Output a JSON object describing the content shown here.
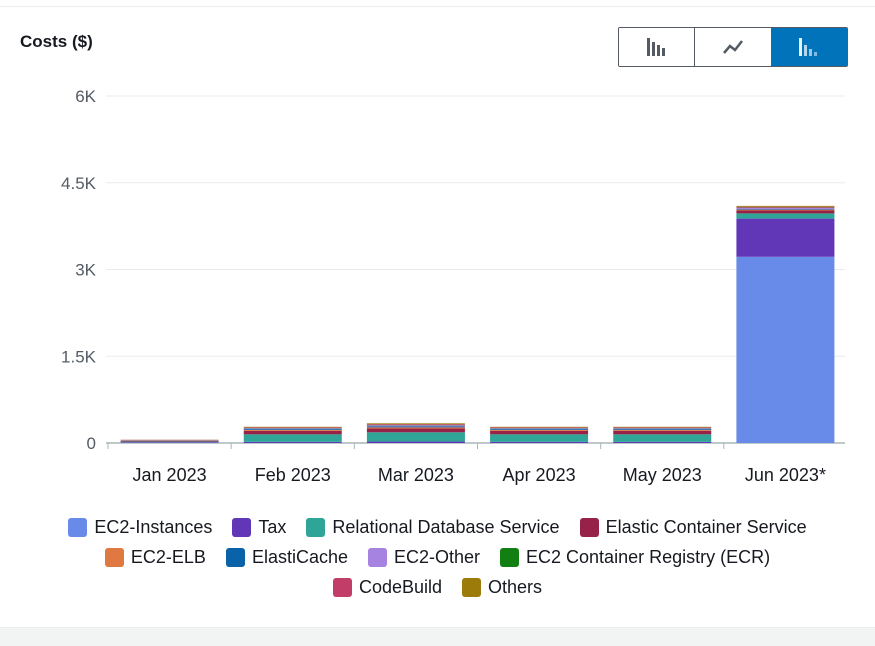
{
  "header": {
    "title": "Costs ($)"
  },
  "view_toggle": {
    "options": [
      {
        "name": "bar-chart-icon",
        "active": false
      },
      {
        "name": "line-chart-icon",
        "active": false
      },
      {
        "name": "stacked-bar-icon",
        "active": true
      }
    ]
  },
  "colors": {
    "EC2-Instances": "#688ae8",
    "Tax": "#6237b7",
    "Relational Database Service": "#2ea597",
    "Elastic Container Service": "#962249",
    "EC2-ELB": "#e07941",
    "ElastiCache": "#0a62a8",
    "EC2-Other": "#a783e1",
    "EC2 Container Registry (ECR)": "#127f12",
    "CodeBuild": "#c33d69",
    "Others": "#9d7b0a"
  },
  "chart_data": {
    "type": "bar",
    "stacked": true,
    "title": "Costs ($)",
    "ylim": [
      0,
      6000
    ],
    "yticks": [
      0,
      1500,
      3000,
      4500,
      6000
    ],
    "ytick_labels": [
      "0",
      "1.5K",
      "3K",
      "4.5K",
      "6K"
    ],
    "grid": true,
    "categories": [
      "Jan 2023",
      "Feb 2023",
      "Mar 2023",
      "Apr 2023",
      "May 2023",
      "Jun 2023*"
    ],
    "series": [
      {
        "name": "EC2-Instances",
        "values": [
          5,
          0,
          0,
          0,
          0,
          3220
        ]
      },
      {
        "name": "Tax",
        "values": [
          10,
          20,
          25,
          20,
          20,
          660
        ]
      },
      {
        "name": "Relational Database Service",
        "values": [
          10,
          130,
          160,
          130,
          130,
          90
        ]
      },
      {
        "name": "Elastic Container Service",
        "values": [
          15,
          60,
          65,
          60,
          60,
          50
        ]
      },
      {
        "name": "EC2-ELB",
        "values": [
          5,
          15,
          20,
          15,
          15,
          15
        ]
      },
      {
        "name": "ElastiCache",
        "values": [
          3,
          15,
          15,
          15,
          15,
          10
        ]
      },
      {
        "name": "EC2-Other",
        "values": [
          3,
          15,
          20,
          15,
          15,
          20
        ]
      },
      {
        "name": "EC2 Container Registry (ECR)",
        "values": [
          1,
          5,
          5,
          5,
          5,
          5
        ]
      },
      {
        "name": "CodeBuild",
        "values": [
          3,
          10,
          15,
          10,
          10,
          15
        ]
      },
      {
        "name": "Others",
        "values": [
          2,
          10,
          15,
          10,
          10,
          15
        ]
      }
    ],
    "legend": "bottom"
  },
  "legend": {
    "rows": [
      [
        "EC2-Instances",
        "Tax",
        "Relational Database Service",
        "Elastic Container Service"
      ],
      [
        "EC2-ELB",
        "ElastiCache",
        "EC2-Other",
        "EC2 Container Registry (ECR)"
      ],
      [
        "CodeBuild",
        "Others"
      ]
    ]
  }
}
